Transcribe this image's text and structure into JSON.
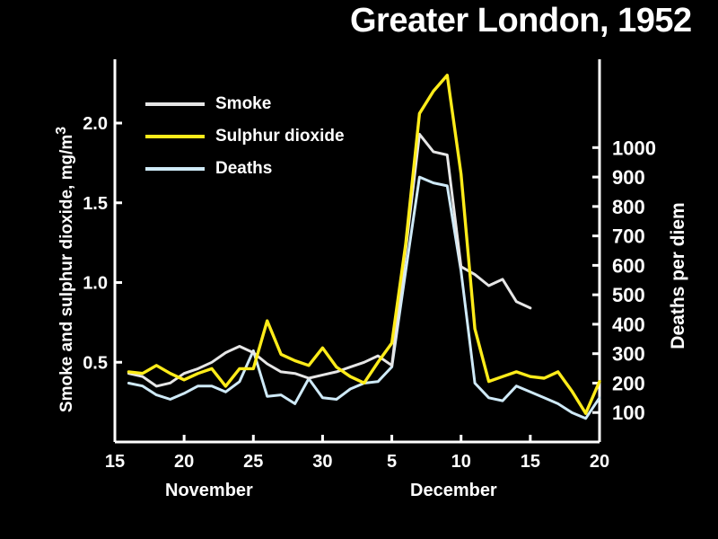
{
  "chart_data": {
    "type": "line",
    "title": "Greater London, 1952",
    "ylabel_left": "Smoke and sulphur dioxide, mg/m",
    "ylabel_left_sup": "3",
    "ylabel_right": "Deaths per diem",
    "x_tick_labels": [
      "15",
      "20",
      "25",
      "30",
      "5",
      "10",
      "15",
      "20"
    ],
    "x_tick_days": [
      0,
      5,
      10,
      15,
      20,
      25,
      30,
      35
    ],
    "x_group_labels": [
      "November",
      "December"
    ],
    "y_left_ticks": [
      0.5,
      1.0,
      1.5,
      2.0
    ],
    "y_left_tick_labels": [
      "0.5",
      "1.0",
      "1.5",
      "2.0"
    ],
    "y_left_range": [
      0,
      2.4
    ],
    "y_right_ticks": [
      100,
      200,
      300,
      400,
      500,
      600,
      700,
      800,
      900,
      1000
    ],
    "y_right_tick_labels": [
      "100",
      "200",
      "300",
      "400",
      "500",
      "600",
      "700",
      "800",
      "900",
      "1000"
    ],
    "y_right_range": [
      0,
      1300
    ],
    "legend_position": "top-left",
    "series": [
      {
        "name": "Smoke",
        "axis": "left",
        "color": "#e6e6e6",
        "segments": [
          {
            "x": [
              1,
              2,
              3,
              4,
              5,
              6,
              7,
              8,
              9,
              10,
              11,
              12,
              13,
              14,
              15,
              16,
              17,
              18,
              19,
              20
            ],
            "y": [
              0.43,
              0.41,
              0.35,
              0.37,
              0.43,
              0.46,
              0.5,
              0.56,
              0.6,
              0.56,
              0.49,
              0.44,
              0.43,
              0.4,
              0.42,
              0.44,
              0.47,
              0.5,
              0.54,
              0.48
            ]
          },
          {
            "x": [
              20,
              21,
              22,
              23,
              24,
              25,
              26,
              27,
              28,
              29,
              30
            ],
            "y": [
              0.48,
              1.2,
              1.93,
              1.82,
              1.8,
              1.1,
              1.05,
              0.98,
              1.02,
              0.88,
              0.84
            ]
          }
        ]
      },
      {
        "name": "Sulphur dioxide",
        "axis": "left",
        "color": "#ffec1a",
        "segments": [
          {
            "x": [
              1,
              2,
              3,
              4,
              5,
              6,
              7,
              8,
              9,
              10,
              11,
              12,
              13,
              14,
              15,
              16,
              17,
              18,
              19,
              20,
              21,
              22,
              23,
              24,
              25,
              26,
              27,
              28,
              29,
              30,
              31,
              32,
              33,
              34
            ],
            "y": [
              0.44,
              0.43,
              0.48,
              0.43,
              0.39,
              0.43,
              0.46,
              0.35,
              0.46,
              0.46,
              0.76,
              0.55,
              0.51,
              0.48,
              0.59,
              0.47,
              0.41,
              0.37,
              0.5,
              0.62,
              1.24,
              2.06,
              2.2,
              2.3,
              1.68,
              0.71,
              0.38,
              0.41,
              0.44,
              0.41,
              0.4,
              0.44,
              0.32,
              0.18
            ]
          },
          {
            "x": [
              34,
              35
            ],
            "y": [
              0.18,
              0.38
            ]
          }
        ]
      },
      {
        "name": "Deaths",
        "axis": "right",
        "color": "#cfeaf8",
        "segments": [
          {
            "x": [
              1,
              2,
              3,
              4,
              5,
              6,
              7,
              8,
              9,
              10,
              11,
              12,
              13,
              14,
              15,
              16,
              17,
              18,
              19,
              20,
              21,
              22,
              23,
              24,
              25,
              26,
              27,
              28,
              29,
              30,
              31,
              32,
              33,
              34,
              35
            ],
            "y": [
              200,
              190,
              160,
              145,
              165,
              190,
              190,
              170,
              205,
              310,
              155,
              160,
              130,
              215,
              150,
              145,
              180,
              200,
              205,
              255,
              580,
              900,
              880,
              870,
              580,
              200,
              150,
              140,
              190,
              170,
              150,
              130,
              100,
              80,
              150
            ]
          }
        ]
      }
    ]
  }
}
